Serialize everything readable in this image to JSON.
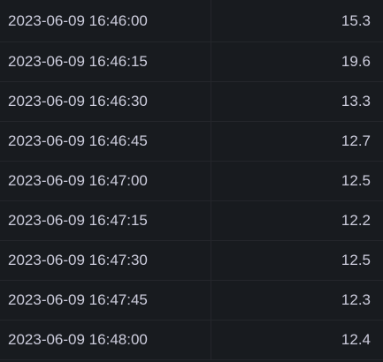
{
  "table": {
    "rows": [
      {
        "time": "2023-06-09 16:46:00",
        "value": "15.3"
      },
      {
        "time": "2023-06-09 16:46:15",
        "value": "19.6"
      },
      {
        "time": "2023-06-09 16:46:30",
        "value": "13.3"
      },
      {
        "time": "2023-06-09 16:46:45",
        "value": "12.7"
      },
      {
        "time": "2023-06-09 16:47:00",
        "value": "12.5"
      },
      {
        "time": "2023-06-09 16:47:15",
        "value": "12.2"
      },
      {
        "time": "2023-06-09 16:47:30",
        "value": "12.5"
      },
      {
        "time": "2023-06-09 16:47:45",
        "value": "12.3"
      },
      {
        "time": "2023-06-09 16:48:00",
        "value": "12.4"
      }
    ]
  },
  "colors": {
    "background": "#181b1f",
    "text": "#ccccdc",
    "border": "#24262b"
  }
}
